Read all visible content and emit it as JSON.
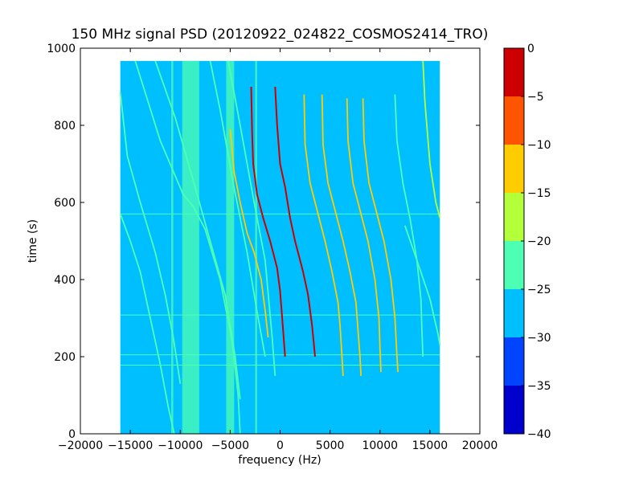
{
  "chart_data": {
    "type": "heatmap",
    "title": "150 MHz signal PSD (20120922_024822_COSMOS2414_TRO)",
    "xlabel": "frequency (Hz)",
    "ylabel": "time (s)",
    "xlim": [
      -20000,
      20000
    ],
    "ylim": [
      0,
      1000
    ],
    "xticks": [
      -20000,
      -15000,
      -10000,
      -5000,
      0,
      5000,
      10000,
      15000,
      20000
    ],
    "xtick_labels": [
      "−20000",
      "−15000",
      "−10000",
      "−5000",
      "0",
      "5000",
      "10000",
      "15000",
      "20000"
    ],
    "yticks": [
      0,
      200,
      400,
      600,
      800,
      1000
    ],
    "ytick_labels": [
      "0",
      "200",
      "400",
      "600",
      "800",
      "1000"
    ],
    "data_extent": {
      "x": [
        -16000,
        16000
      ],
      "y": [
        0,
        967
      ]
    },
    "background_level": -27.5,
    "colorbar": {
      "range": [
        -40,
        0
      ],
      "ticks": [
        0,
        -5,
        -10,
        -15,
        -20,
        -25,
        -30,
        -35,
        -40
      ],
      "tick_labels": [
        "0",
        "−5",
        "−10",
        "−15",
        "−20",
        "−25",
        "−30",
        "−35",
        "−40"
      ],
      "levels": [
        {
          "range": [
            -5,
            0
          ],
          "color": "#cc0000"
        },
        {
          "range": [
            -10,
            -5
          ],
          "color": "#ff5500"
        },
        {
          "range": [
            -15,
            -10
          ],
          "color": "#ffcc00"
        },
        {
          "range": [
            -20,
            -15
          ],
          "color": "#b3ff3a"
        },
        {
          "range": [
            -25,
            -20
          ],
          "color": "#4dffb3"
        },
        {
          "range": [
            -30,
            -25
          ],
          "color": "#00bfff"
        },
        {
          "range": [
            -35,
            -30
          ],
          "color": "#0044ff"
        },
        {
          "range": [
            -40,
            -35
          ],
          "color": "#0000cc"
        }
      ]
    },
    "vertical_bands": [
      {
        "x": [
          -9800,
          -8100
        ],
        "level": -22
      },
      {
        "x": [
          -5400,
          -4600
        ],
        "level": -22
      },
      {
        "x": [
          -10900,
          -10700
        ],
        "level": -22
      },
      {
        "x": [
          -2500,
          -2300
        ],
        "level": -22
      }
    ],
    "horizontal_lines": [
      {
        "y": 570,
        "level": -22
      },
      {
        "y": 308,
        "level": -22
      },
      {
        "y": 205,
        "level": -22
      },
      {
        "y": 178,
        "level": -22
      }
    ],
    "series": [
      {
        "level": -22,
        "points": [
          [
            -16000,
            885
          ],
          [
            -15300,
            720
          ],
          [
            -14000,
            600
          ],
          [
            -12500,
            470
          ],
          [
            -11500,
            360
          ],
          [
            -10700,
            250
          ],
          [
            -10000,
            130
          ]
        ]
      },
      {
        "level": -22,
        "points": [
          [
            -16000,
            570
          ],
          [
            -15000,
            500
          ],
          [
            -14000,
            420
          ],
          [
            -13000,
            300
          ],
          [
            -12000,
            180
          ],
          [
            -11200,
            70
          ],
          [
            -10600,
            0
          ]
        ]
      },
      {
        "level": -22,
        "points": [
          [
            -14500,
            967
          ],
          [
            -12000,
            760
          ],
          [
            -9700,
            620
          ],
          [
            -8700,
            590
          ],
          [
            -7500,
            530
          ],
          [
            -6000,
            400
          ],
          [
            -4800,
            240
          ],
          [
            -4200,
            100
          ],
          [
            -4000,
            0
          ]
        ]
      },
      {
        "level": -22,
        "points": [
          [
            -12500,
            967
          ],
          [
            -10500,
            820
          ],
          [
            -8300,
            620
          ],
          [
            -7000,
            500
          ],
          [
            -5500,
            360
          ],
          [
            -4500,
            200
          ],
          [
            -4000,
            90
          ]
        ]
      },
      {
        "level": -22,
        "points": [
          [
            -7000,
            967
          ],
          [
            -6000,
            840
          ],
          [
            -4700,
            650
          ],
          [
            -3300,
            470
          ],
          [
            -2400,
            330
          ],
          [
            -1500,
            200
          ]
        ]
      },
      {
        "level": -22,
        "points": [
          [
            -5200,
            967
          ],
          [
            -4000,
            800
          ],
          [
            -2600,
            600
          ],
          [
            -1500,
            450
          ],
          [
            -800,
            250
          ],
          [
            -500,
            150
          ]
        ]
      },
      {
        "level": -12,
        "points": [
          [
            -5000,
            790
          ],
          [
            -4600,
            680
          ],
          [
            -4000,
            600
          ],
          [
            -3300,
            520
          ],
          [
            -2600,
            470
          ],
          [
            -1900,
            400
          ],
          [
            -1500,
            320
          ],
          [
            -1200,
            250
          ]
        ]
      },
      {
        "level": -3,
        "points": [
          [
            -2900,
            900
          ],
          [
            -2800,
            780
          ],
          [
            -2700,
            700
          ],
          [
            -2300,
            620
          ],
          [
            -1700,
            560
          ],
          [
            -1000,
            500
          ],
          [
            -300,
            430
          ],
          [
            0,
            370
          ],
          [
            300,
            270
          ],
          [
            500,
            200
          ]
        ]
      },
      {
        "level": -3,
        "points": [
          [
            -500,
            900
          ],
          [
            -300,
            800
          ],
          [
            0,
            700
          ],
          [
            500,
            640
          ],
          [
            1000,
            560
          ],
          [
            1500,
            500
          ],
          [
            2300,
            420
          ],
          [
            2800,
            360
          ],
          [
            3200,
            280
          ],
          [
            3500,
            200
          ]
        ]
      },
      {
        "level": -12,
        "points": [
          [
            2400,
            880
          ],
          [
            2500,
            750
          ],
          [
            3000,
            650
          ],
          [
            3700,
            580
          ],
          [
            4500,
            500
          ],
          [
            5200,
            420
          ],
          [
            5800,
            340
          ],
          [
            6000,
            280
          ],
          [
            6200,
            200
          ],
          [
            6300,
            150
          ]
        ]
      },
      {
        "level": -12,
        "points": [
          [
            4200,
            880
          ],
          [
            4300,
            750
          ],
          [
            4800,
            650
          ],
          [
            5500,
            580
          ],
          [
            6300,
            500
          ],
          [
            7000,
            420
          ],
          [
            7600,
            340
          ],
          [
            7800,
            270
          ],
          [
            8000,
            200
          ],
          [
            8100,
            150
          ]
        ]
      },
      {
        "level": -15,
        "points": [
          [
            6700,
            870
          ],
          [
            6800,
            760
          ],
          [
            7300,
            650
          ],
          [
            8000,
            580
          ],
          [
            8800,
            500
          ],
          [
            9500,
            400
          ],
          [
            9900,
            300
          ],
          [
            10000,
            220
          ],
          [
            10100,
            160
          ]
        ]
      },
      {
        "level": -15,
        "points": [
          [
            8300,
            870
          ],
          [
            8400,
            760
          ],
          [
            8900,
            650
          ],
          [
            9600,
            580
          ],
          [
            10400,
            500
          ],
          [
            11100,
            400
          ],
          [
            11500,
            300
          ],
          [
            11700,
            200
          ],
          [
            11800,
            160
          ]
        ]
      },
      {
        "level": -22,
        "points": [
          [
            11500,
            880
          ],
          [
            11700,
            760
          ],
          [
            12300,
            650
          ],
          [
            13000,
            560
          ],
          [
            13700,
            450
          ],
          [
            14100,
            350
          ],
          [
            14200,
            270
          ],
          [
            14300,
            200
          ]
        ]
      },
      {
        "level": -17,
        "points": [
          [
            14300,
            967
          ],
          [
            14500,
            860
          ],
          [
            15000,
            700
          ],
          [
            15600,
            600
          ],
          [
            16000,
            560
          ]
        ]
      },
      {
        "level": -22,
        "points": [
          [
            12500,
            540
          ],
          [
            13700,
            450
          ],
          [
            15000,
            350
          ],
          [
            15800,
            260
          ],
          [
            16000,
            230
          ]
        ]
      }
    ]
  }
}
